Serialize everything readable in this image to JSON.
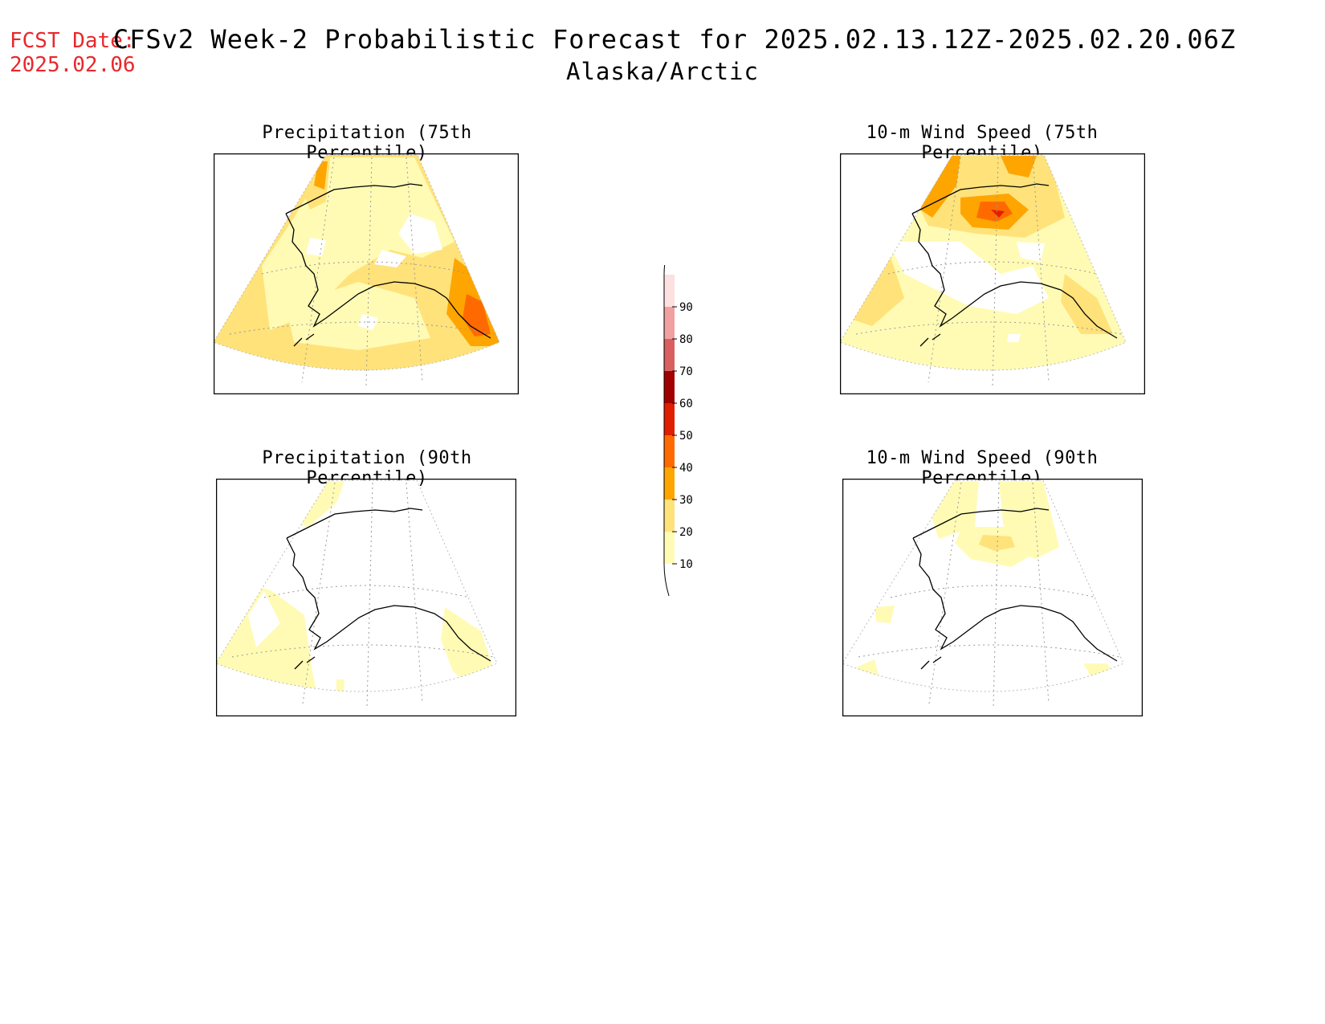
{
  "header": {
    "fcst_label": "FCST Date:",
    "fcst_date": "2025.02.06",
    "title": "CFSv2 Week-2 Probabilistic Forecast for 2025.02.13.12Z-2025.02.20.06Z",
    "subtitle": "Alaska/Arctic"
  },
  "panels": [
    {
      "id": "precip75",
      "title": "Precipitation (75th Percentile)"
    },
    {
      "id": "wind75",
      "title": "10-m Wind Speed (75th Percentile)"
    },
    {
      "id": "precip90",
      "title": "Precipitation (90th Percentile)"
    },
    {
      "id": "wind90",
      "title": "10-m Wind Speed (90th Percentile)"
    }
  ],
  "colorbar": {
    "levels": [
      "10",
      "20",
      "30",
      "40",
      "50",
      "60",
      "70",
      "80",
      "90"
    ],
    "colors": [
      "#fffbb5",
      "#ffe27a",
      "#ffa500",
      "#ff6a00",
      "#e01e00",
      "#a00000",
      "#d86060",
      "#f0a0a0",
      "#fde0e0"
    ]
  },
  "colors": {
    "c10": "#fffbb5",
    "c20": "#ffe27a",
    "c30": "#ffa500",
    "c40": "#ff6a00",
    "c50": "#e01e00",
    "fcst": "#e8282d"
  }
}
